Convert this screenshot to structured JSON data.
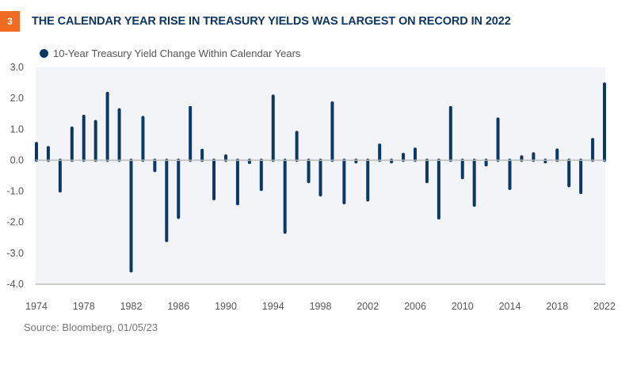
{
  "badge": {
    "number": "3",
    "color": "#F26B21"
  },
  "title": "THE CALENDAR YEAR RISE IN TREASURY YIELDS WAS LARGEST ON RECORD IN 2022",
  "legend": {
    "label": "10-Year Treasury Yield Change Within Calendar Years",
    "color": "#0C3866"
  },
  "source": "Source: Bloomberg, 01/05/23",
  "colors": {
    "bar": "#0C3866",
    "plot_bg": "#F2F4F7",
    "axis": "#BBBBBB",
    "title": "#0F3560"
  },
  "chart_data": {
    "type": "bar",
    "title": "THE CALENDAR YEAR RISE IN TREASURY YIELDS WAS LARGEST ON RECORD IN 2022",
    "xlabel": "",
    "ylabel": "",
    "ylim": [
      -4.0,
      3.0
    ],
    "yticks": [
      "3.0",
      "2.0",
      "1.0",
      "0.0",
      "-1.0",
      "-2.0",
      "-3.0",
      "-4.0"
    ],
    "ytick_values": [
      3,
      2,
      1,
      0,
      -1,
      -2,
      -3,
      -4
    ],
    "xticks": [
      "1974",
      "1978",
      "1982",
      "1986",
      "1990",
      "1994",
      "1998",
      "2002",
      "2006",
      "2010",
      "2014",
      "2018",
      "2022"
    ],
    "grid": false,
    "legend_position": "top-left",
    "categories": [
      1974,
      1975,
      1976,
      1977,
      1978,
      1979,
      1980,
      1981,
      1982,
      1983,
      1984,
      1985,
      1986,
      1987,
      1988,
      1989,
      1990,
      1991,
      1992,
      1993,
      1994,
      1995,
      1996,
      1997,
      1998,
      1999,
      2000,
      2001,
      2002,
      2003,
      2004,
      2005,
      2006,
      2007,
      2008,
      2009,
      2010,
      2011,
      2012,
      2013,
      2014,
      2015,
      2016,
      2017,
      2018,
      2019,
      2020,
      2021,
      2022
    ],
    "series": [
      {
        "name": "10-Year Treasury Yield Change Within Calendar Years",
        "values": [
          0.54,
          0.41,
          -0.99,
          1.04,
          1.42,
          1.25,
          2.16,
          1.63,
          -3.57,
          1.38,
          -0.33,
          -2.59,
          -1.84,
          1.7,
          0.32,
          -1.24,
          0.14,
          -1.4,
          -0.07,
          -0.94,
          2.07,
          -2.32,
          0.9,
          -0.69,
          -1.12,
          1.85,
          -1.37,
          -0.05,
          -1.28,
          0.49,
          -0.05,
          0.19,
          0.36,
          -0.69,
          -1.86,
          1.7,
          -0.56,
          -1.45,
          -0.15,
          1.33,
          -0.91,
          0.11,
          0.21,
          -0.05,
          0.33,
          -0.82,
          -1.04,
          0.67,
          2.46
        ]
      }
    ]
  }
}
